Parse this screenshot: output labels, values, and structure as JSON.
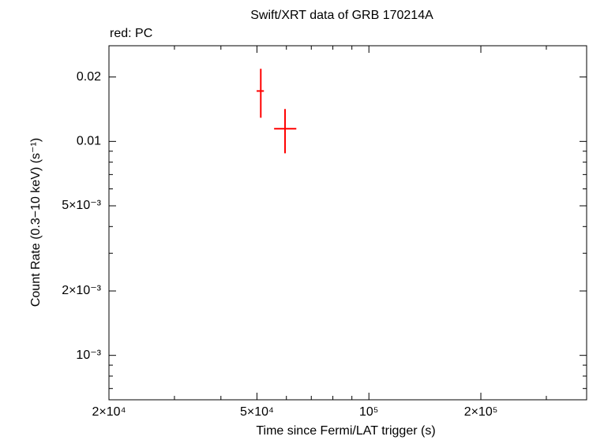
{
  "chart_data": {
    "type": "scatter",
    "title": "Swift/XRT data of GRB 170214A",
    "subtitle": "red: PC",
    "x_label": "Time since Fermi/LAT trigger (s)",
    "y_label": "Count Rate (0.3−10 keV) (s⁻¹)",
    "x_log": true,
    "y_log": true,
    "xlim": [
      20000,
      385000
    ],
    "ylim": [
      0.00062,
      0.028
    ],
    "xticks": [
      {
        "value": 20000,
        "label": "2×10⁴"
      },
      {
        "value": 50000,
        "label": "5×10⁴"
      },
      {
        "value": 100000,
        "label": "10⁵"
      },
      {
        "value": 200000,
        "label": "2×10⁵"
      }
    ],
    "xminor_ticks": [
      30000,
      40000,
      60000,
      70000,
      80000,
      90000,
      300000
    ],
    "yticks": [
      {
        "value": 0.001,
        "label": "10⁻³"
      },
      {
        "value": 0.002,
        "label": "2×10⁻³"
      },
      {
        "value": 0.005,
        "label": "5×10⁻³"
      },
      0.01,
      0.02
    ],
    "yminor_ticks": [
      0.0007,
      0.0008,
      0.0009,
      0.003,
      0.004,
      0.006,
      0.007,
      0.008,
      0.009
    ],
    "series": [
      {
        "color": "#ff0000",
        "x": [
          51200,
          59500
        ],
        "x_lo": [
          49900,
          55600
        ],
        "x_hi": [
          52200,
          63800
        ],
        "values": [
          0.0172,
          0.01146
        ],
        "y_lo": [
          0.0129,
          0.0088
        ],
        "y_hi": [
          0.02185,
          0.01417
        ]
      }
    ]
  }
}
